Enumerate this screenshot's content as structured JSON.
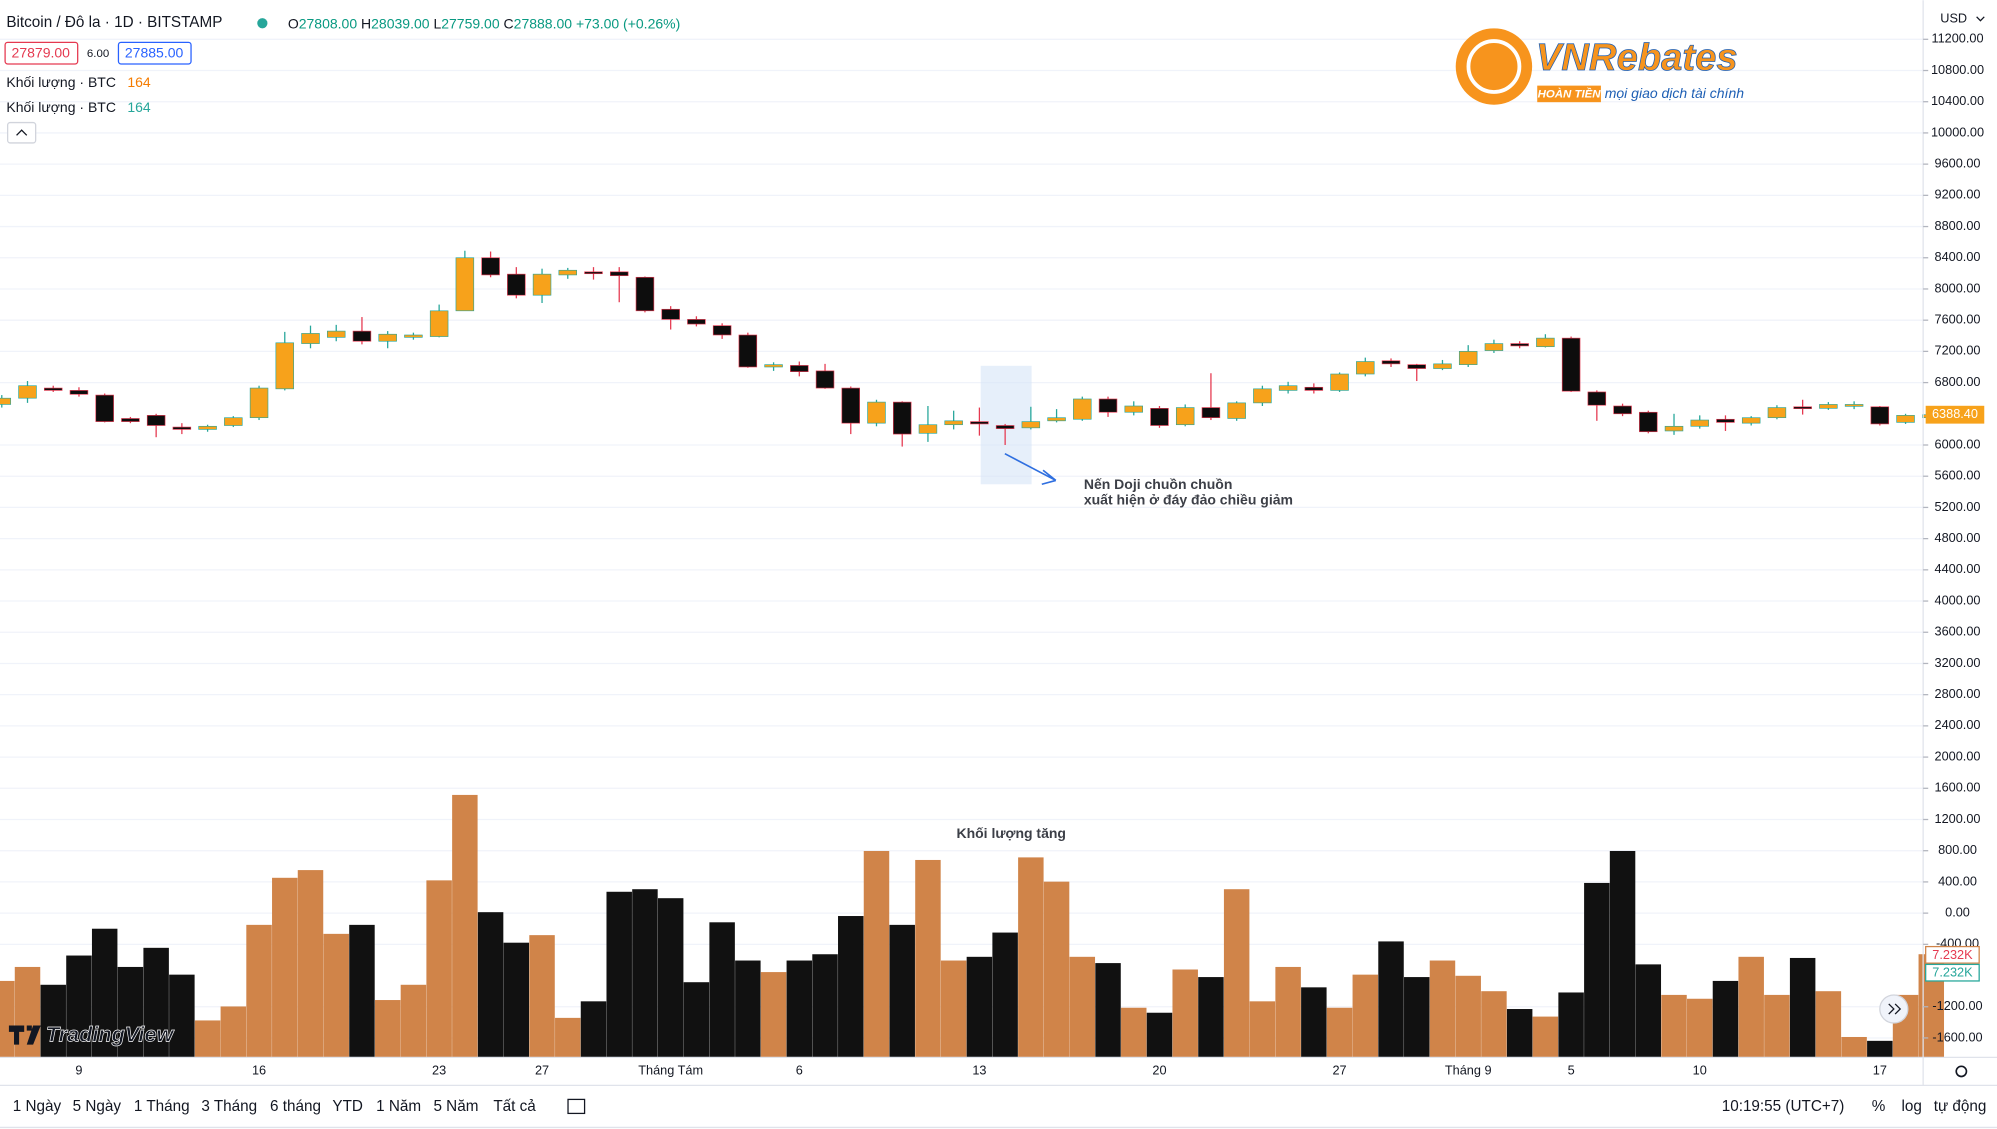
{
  "header": {
    "symbol": "Bitcoin / Đô la · 1D · BITSTAMP",
    "ohlc": [
      {
        "label": "O",
        "value": "27808.00"
      },
      {
        "label": "H",
        "value": "28039.00"
      },
      {
        "label": "L",
        "value": "27759.00"
      },
      {
        "label": "C",
        "value": "27888.00"
      }
    ],
    "change": "+73.00 (+0.26%)",
    "bid": "27879.00",
    "spread": "6.00",
    "ask": "27885.00",
    "indicators": [
      {
        "name": "Khối lượng · BTC",
        "value": "164"
      },
      {
        "name": "Khối lượng · BTC",
        "value": "164"
      }
    ],
    "currency": "USD"
  },
  "logo": {
    "brand": "VNRebates",
    "tag": "HOÀN TIỀN",
    "slogan": "mọi giao dịch tài chính",
    "watermark": "TradingView"
  },
  "chart_data": {
    "type": "candlestick",
    "categories": [
      null,
      null,
      null,
      "9",
      null,
      null,
      null,
      null,
      null,
      null,
      "16",
      null,
      null,
      null,
      null,
      null,
      null,
      "23",
      null,
      null,
      null,
      "27",
      null,
      null,
      null,
      null,
      "Tháng Tám",
      null,
      null,
      null,
      null,
      "6",
      null,
      null,
      null,
      null,
      null,
      null,
      "13",
      null,
      null,
      null,
      null,
      null,
      null,
      "20",
      null,
      null,
      null,
      null,
      null,
      null,
      "27",
      null,
      null,
      null,
      null,
      "Tháng 9",
      null,
      null,
      null,
      "5",
      null,
      null,
      null,
      null,
      "10",
      null,
      null,
      null,
      null,
      null,
      null,
      "17",
      null,
      null
    ],
    "open": [
      6520,
      6600,
      6730,
      6700,
      6640,
      6340,
      6380,
      6230,
      6200,
      6250,
      6350,
      6720,
      7300,
      7380,
      7460,
      7330,
      7380,
      7390,
      7720,
      8400,
      8190,
      7920,
      8180,
      8220,
      8220,
      8150,
      7740,
      7610,
      7530,
      7410,
      7000,
      7020,
      6950,
      6730,
      6280,
      6550,
      6150,
      6260,
      6300,
      6250,
      6220,
      6310,
      6330,
      6590,
      6420,
      6470,
      6260,
      6480,
      6340,
      6540,
      6700,
      6740,
      6700,
      6910,
      7080,
      7030,
      6980,
      7030,
      7210,
      7300,
      7260,
      7370,
      6680,
      6500,
      6420,
      6180,
      6240,
      6330,
      6280,
      6350,
      6490,
      6470,
      6500,
      6490,
      6290,
      6350
    ],
    "high": [
      6640,
      6820,
      6760,
      6740,
      6660,
      6360,
      6400,
      6280,
      6260,
      6370,
      6760,
      7450,
      7530,
      7540,
      7640,
      7460,
      7440,
      7800,
      8490,
      8480,
      8280,
      8260,
      8270,
      8280,
      8280,
      8160,
      7780,
      7650,
      7560,
      7440,
      7060,
      7070,
      7040,
      6750,
      6580,
      6560,
      6500,
      6440,
      6480,
      6270,
      6490,
      6460,
      6620,
      6620,
      6560,
      6500,
      6520,
      6920,
      6560,
      6760,
      6810,
      6790,
      6930,
      7120,
      7110,
      7040,
      7090,
      7280,
      7350,
      7330,
      7420,
      7390,
      6700,
      6530,
      6440,
      6400,
      6380,
      6380,
      6370,
      6510,
      6580,
      6550,
      6560,
      6500,
      6400,
      6400
    ],
    "low": [
      6480,
      6540,
      6680,
      6620,
      6290,
      6280,
      6100,
      6140,
      6170,
      6230,
      6320,
      6700,
      7240,
      7330,
      7290,
      7240,
      7350,
      7380,
      7720,
      8150,
      7880,
      7820,
      8130,
      8120,
      7830,
      7700,
      7480,
      7520,
      7360,
      6990,
      6950,
      6880,
      6720,
      6140,
      6240,
      5980,
      6040,
      6200,
      6120,
      6000,
      6200,
      6290,
      6310,
      6360,
      6380,
      6220,
      6240,
      6320,
      6310,
      6500,
      6660,
      6660,
      6680,
      6880,
      7000,
      6820,
      6960,
      7000,
      7180,
      7240,
      7250,
      6680,
      6310,
      6370,
      6150,
      6130,
      6210,
      6180,
      6250,
      6330,
      6390,
      6450,
      6460,
      6250,
      6270,
      6330
    ],
    "close": [
      6600,
      6760,
      6700,
      6650,
      6300,
      6300,
      6250,
      6200,
      6240,
      6350,
      6730,
      7310,
      7430,
      7460,
      7330,
      7420,
      7410,
      7720,
      8400,
      8180,
      7920,
      8190,
      8240,
      8200,
      8170,
      7720,
      7610,
      7550,
      7410,
      7000,
      7030,
      6940,
      6730,
      6280,
      6550,
      6140,
      6260,
      6310,
      6270,
      6210,
      6300,
      6350,
      6590,
      6420,
      6500,
      6250,
      6480,
      6350,
      6540,
      6720,
      6760,
      6700,
      6910,
      7070,
      7040,
      6980,
      7040,
      7200,
      7300,
      7270,
      7370,
      6690,
      6510,
      6400,
      6170,
      6240,
      6320,
      6290,
      6350,
      6480,
      6480,
      6520,
      6520,
      6270,
      6380,
      6388.4
    ],
    "volume": [
      5360,
      6340,
      5090,
      7140,
      9020,
      6340,
      7680,
      5800,
      2590,
      3570,
      9290,
      12590,
      13130,
      8660,
      9290,
      4020,
      5090,
      12410,
      18400,
      10180,
      8040,
      8570,
      2770,
      3930,
      11610,
      11790,
      11160,
      5270,
      9470,
      6790,
      5980,
      6790,
      7230,
      9910,
      14470,
      9290,
      13840,
      6790,
      7050,
      8750,
      14020,
      12320,
      7050,
      6610,
      3480,
      3130,
      6160,
      5630,
      11790,
      3930,
      6340,
      4910,
      3480,
      5800,
      8130,
      5630,
      6790,
      5720,
      4640,
      3390,
      2860,
      4550,
      12230,
      14470,
      6520,
      4380,
      4110,
      5360,
      7050,
      4380,
      6970,
      4640,
      1430,
      1160,
      4380,
      7232
    ],
    "up_color": "#f7a21b",
    "down_color": "#0d0d0d",
    "up_wick": "#26a69a",
    "down_wick": "#e53950",
    "volume_up_color": "#d08449",
    "volume_down_color": "#111111",
    "ylim": [
      -1800,
      11700
    ],
    "volume_ylim": [
      0,
      20000
    ],
    "grid": true,
    "yticks": [
      {
        "value": 11200,
        "label": "11200.00"
      },
      {
        "value": 10800,
        "label": "10800.00"
      },
      {
        "value": 10400,
        "label": "10400.00"
      },
      {
        "value": 10000,
        "label": "10000.00"
      },
      {
        "value": 9600,
        "label": "9600.00"
      },
      {
        "value": 9200,
        "label": "9200.00"
      },
      {
        "value": 8800,
        "label": "8800.00"
      },
      {
        "value": 8400,
        "label": "8400.00"
      },
      {
        "value": 8000,
        "label": "8000.00"
      },
      {
        "value": 7600,
        "label": "7600.00"
      },
      {
        "value": 7200,
        "label": "7200.00"
      },
      {
        "value": 6800,
        "label": "6800.00"
      },
      {
        "value": 6000,
        "label": "6000.00"
      },
      {
        "value": 5600,
        "label": "5600.00"
      },
      {
        "value": 5200,
        "label": "5200.00"
      },
      {
        "value": 4800,
        "label": "4800.00"
      },
      {
        "value": 4400,
        "label": "4400.00"
      },
      {
        "value": 4000,
        "label": "4000.00"
      },
      {
        "value": 3600,
        "label": "3600.00"
      },
      {
        "value": 3200,
        "label": "3200.00"
      },
      {
        "value": 2800,
        "label": "2800.00"
      },
      {
        "value": 2400,
        "label": "2400.00"
      },
      {
        "value": 2000,
        "label": "2000.00"
      },
      {
        "value": 1600,
        "label": "1600.00"
      },
      {
        "value": 1200,
        "label": "1200.00"
      },
      {
        "value": 800,
        "label": "800.00"
      },
      {
        "value": 400,
        "label": "400.00"
      },
      {
        "value": 0,
        "label": "0.00"
      },
      {
        "value": -400,
        "label": "-400.00"
      },
      {
        "value": -1200,
        "label": "-1200.00"
      },
      {
        "value": -1600,
        "label": "-1600.00"
      }
    ],
    "last_price_label": "6388.40",
    "volume_labels": [
      "7.232K",
      "7.232K"
    ],
    "annotation_doji": [
      "Nến Doji chuồn chuồn",
      "xuất hiện ở đáy đảo chiều giảm"
    ],
    "annotation_volume": "Khối lượng tăng"
  },
  "toolbar": {
    "ranges": [
      "1 Ngày",
      "5 Ngày",
      "1 Tháng",
      "3 Tháng",
      "6 tháng",
      "YTD",
      "1 Năm",
      "5 Năm",
      "Tất cả"
    ],
    "time": "10:19:55 (UTC+7)",
    "percent": "%",
    "log": "log",
    "auto": "tự động"
  }
}
